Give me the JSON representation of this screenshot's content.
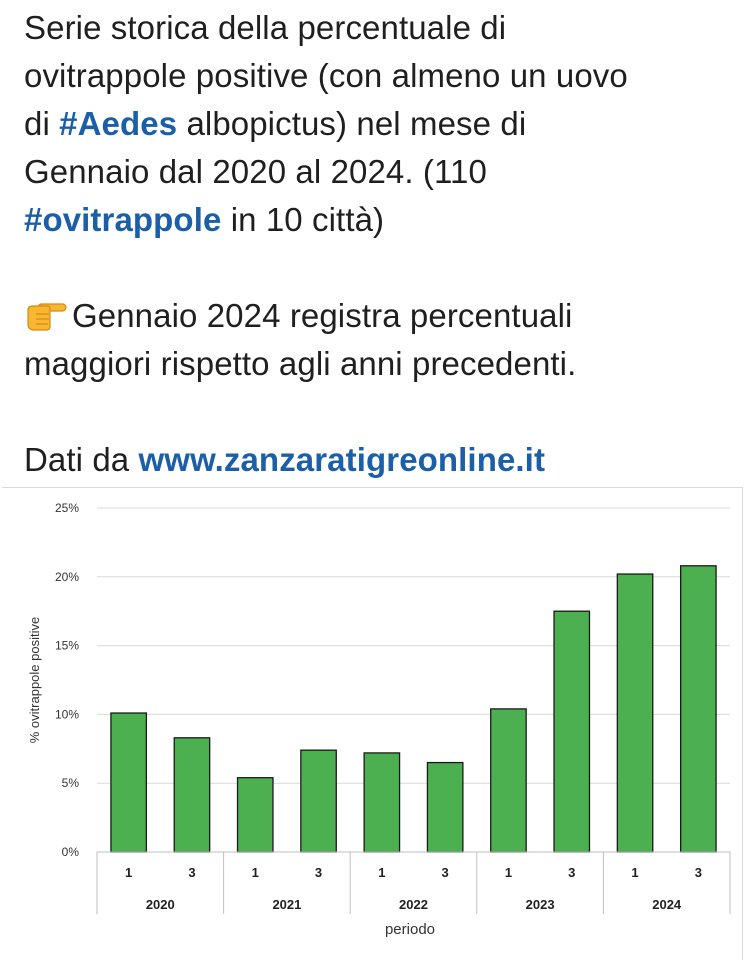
{
  "post": {
    "title_line1": "Serie storica della percentuale di",
    "title_line2": "ovitrappole positive (con almeno un uovo",
    "title_line3_pre": "di ",
    "hashtag_aedes": "#Aedes",
    "title_line3_post": " albopictus)  nel mese di",
    "title_line4": "Gennaio dal 2020 al 2024. (110",
    "hashtag_ovitrappole": "#ovitrappole",
    "title_line5_post": " in 10 città)",
    "note_icon": "pointing-hand-emoji",
    "note_line1": "Gennaio 2024 registra percentuali",
    "note_line2": "maggiori rispetto agli anni precedenti.",
    "source_pre": "Dati da ",
    "source_link": "www.zanzaratigreonline.it"
  },
  "colors": {
    "text": "#1f1f1f",
    "link": "#1a5fa8",
    "bar_fill": "#4caf50",
    "bar_stroke": "#1a1a1a",
    "grid": "#d9d9d9"
  },
  "chart_data": {
    "type": "bar",
    "xlabel": "periodo",
    "ylabel": "% ovitrappole positive",
    "ylim": [
      0,
      25
    ],
    "yticks": [
      0,
      5,
      10,
      15,
      20,
      25
    ],
    "ytick_labels": [
      "0%",
      "5%",
      "10%",
      "15%",
      "20%",
      "25%"
    ],
    "grid": true,
    "categories": [
      "1",
      "3",
      "1",
      "3",
      "1",
      "3",
      "1",
      "3",
      "1",
      "3"
    ],
    "groups": [
      {
        "label": "2020",
        "count": 2
      },
      {
        "label": "2021",
        "count": 2
      },
      {
        "label": "2022",
        "count": 2
      },
      {
        "label": "2023",
        "count": 2
      },
      {
        "label": "2024",
        "count": 2
      }
    ],
    "values": [
      10.1,
      8.3,
      5.4,
      7.4,
      7.2,
      6.5,
      10.4,
      17.5,
      20.2,
      20.8
    ]
  }
}
